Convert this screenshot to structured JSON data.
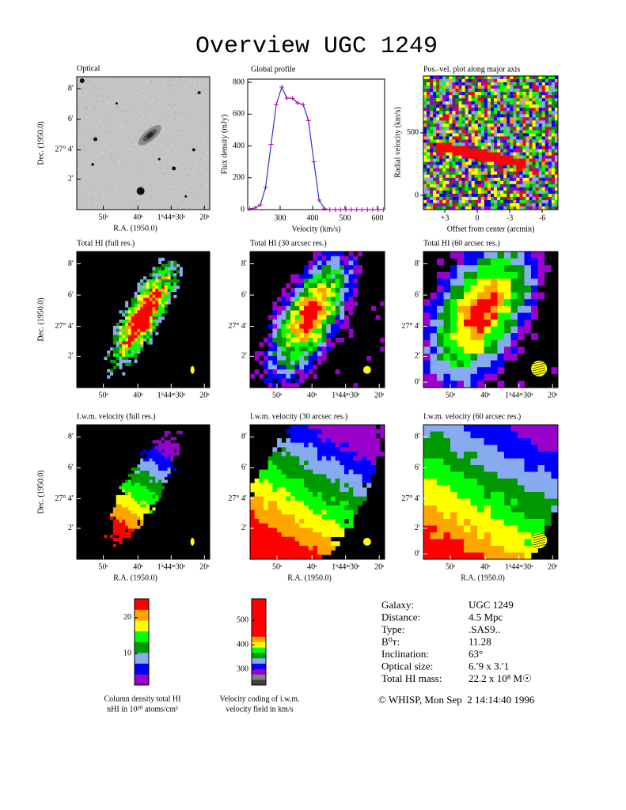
{
  "title": "Overview UGC 1249",
  "chart_data": {
    "type": "line",
    "title": "Global profile",
    "xlabel": "Velocity (km/s)",
    "ylabel": "Flux density (mJy)",
    "x": [
      206,
      222,
      239,
      255,
      272,
      288,
      305,
      321,
      338,
      354,
      371,
      387,
      404,
      420,
      437,
      453,
      470,
      486,
      503,
      519,
      536,
      552,
      569,
      585,
      602,
      618
    ],
    "values": [
      5,
      10,
      30,
      140,
      410,
      660,
      770,
      700,
      700,
      670,
      660,
      560,
      300,
      60,
      5,
      0,
      0,
      0,
      0,
      0,
      0,
      0,
      0,
      0,
      0,
      0
    ],
    "color": "#3333cc",
    "marker_color": "#cc00aa",
    "xlim": [
      200,
      622
    ],
    "xticks": [
      300,
      400,
      500,
      600
    ],
    "ylim": [
      0,
      820
    ],
    "yticks": [
      0,
      200,
      400,
      600,
      800
    ]
  },
  "pv_plot": {
    "title": "Pos.-vel. plot along major axis",
    "xlabel": "Offset from center (arcmin)",
    "ylabel": "Radial velocity (km/s)",
    "xlim": [
      4.98,
      -7.46
    ],
    "xticks": [
      {
        "value": 3,
        "label": "+3"
      },
      0,
      -3,
      -6
    ],
    "ylim": [
      -114,
      955
    ],
    "yticks": [
      0,
      500
    ]
  },
  "maps": [
    {
      "title": "Optical",
      "dec_label": "Dec. (1950.0)",
      "ra_label": "R.A. (1950.0)",
      "dec_ticks": [
        "8′",
        "6′",
        "27° 4′",
        "2′"
      ],
      "ra_ticks": [
        "50ˢ",
        "40ˢ",
        "1ʰ44ᵐ30ˢ",
        "20ˢ"
      ]
    },
    {
      "title": "Total HI (full res.)",
      "dec_label": "Dec. (1950.0)",
      "dec_ticks": [
        "8′",
        "6′",
        "27° 4′",
        "2′"
      ],
      "ra_ticks": [
        "50ˢ",
        "40ˢ",
        "1ʰ44ᵐ30ˢ",
        "20ˢ"
      ]
    },
    {
      "title": "Total HI (30 arcsec res.)",
      "dec_ticks": [
        "8′",
        "6′",
        "27° 4′",
        "2′"
      ],
      "ra_ticks": [
        "50ˢ",
        "40ˢ",
        "1ʰ44ᵐ30ˢ",
        "20ˢ"
      ]
    },
    {
      "title": "Total HI (60 arcsec res.)",
      "dec_ticks": [
        "8′",
        "6′",
        "27° 4′",
        "2′",
        "0′"
      ],
      "ra_ticks": [
        "50ˢ",
        "40ˢ",
        "1ʰ44ᵐ30ˢ",
        "20ˢ"
      ]
    },
    {
      "title": "I.w.m. velocity (full res.)",
      "dec_label": "Dec. (1950.0)",
      "ra_label": "R.A. (1950.0)",
      "dec_ticks": [
        "8′",
        "6′",
        "27° 4′",
        "2′"
      ],
      "ra_ticks": [
        "50ˢ",
        "40ˢ",
        "1ʰ44ᵐ30ˢ",
        "20ˢ"
      ]
    },
    {
      "title": "I.w.m. velocity (30 arcsec res.)",
      "ra_label": "R.A. (1950.0)",
      "dec_ticks": [
        "8′",
        "6′",
        "27° 4′",
        "2′"
      ],
      "ra_ticks": [
        "50ˢ",
        "40ˢ",
        "1ʰ44ᵐ30ˢ",
        "20ˢ"
      ]
    },
    {
      "title": "I.w.m. velocity (60 arcsec res.)",
      "ra_label": "R.A. (1950.0)",
      "dec_ticks": [
        "8′",
        "6′",
        "27° 4′",
        "2′",
        "0′"
      ],
      "ra_ticks": [
        "50ˢ",
        "40ˢ",
        "1ʰ44ᵐ30ˢ",
        "20ˢ"
      ]
    }
  ],
  "colorbars": [
    {
      "caption": [
        "Column density total HI",
        "nHI in 10²⁰ atoms/cm²"
      ],
      "ylim": [
        1.3,
        25.2
      ],
      "yticks": [
        10,
        20
      ]
    },
    {
      "caption": [
        "Velocity coding of i.w.m.",
        "velocity field in km/s"
      ],
      "ylim": [
        236,
        588
      ],
      "yticks": [
        300,
        400,
        500
      ]
    }
  ],
  "info": {
    "rows": [
      [
        "Galaxy:",
        "UGC 1249"
      ],
      [
        "Distance:",
        "4.5 Mpc"
      ],
      [
        "Type:",
        ".SAS9.."
      ],
      [
        "B⁰ᴛ:",
        "11.28"
      ],
      [
        "Inclination:",
        "63°"
      ],
      [
        "Optical size:",
        "6.′9 x 3.′1"
      ],
      [
        "Total HI mass:",
        "22.2 x 10⁸ M☉"
      ]
    ]
  },
  "footer": "© WHISP, Mon Sep  2 14:14:40 1996"
}
